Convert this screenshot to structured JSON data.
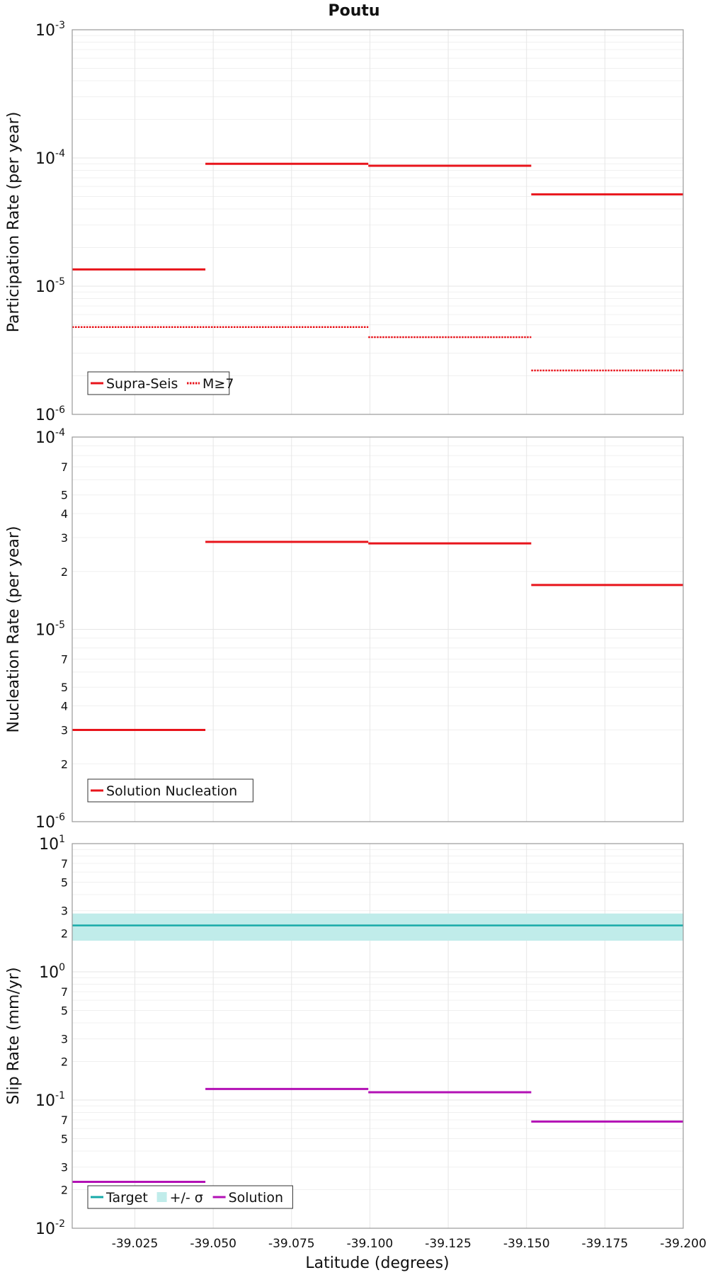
{
  "figure": {
    "title": "Poutu",
    "xlabel": "Latitude (degrees)"
  },
  "colors": {
    "red": "#e8141b",
    "teal": "#17aaa8",
    "band": "#c0ecea",
    "magenta": "#b311b5",
    "grid": "#e6e6e6",
    "frame": "#999999"
  },
  "chart_data": [
    {
      "type": "line",
      "ylabel": "Participation Rate (per year)",
      "xlim": [
        -39.005,
        -39.2
      ],
      "ylim": [
        1e-06,
        0.001
      ],
      "yscale": "log",
      "x_ticks": [
        -39.025,
        -39.05,
        -39.075,
        -39.1,
        -39.125,
        -39.15,
        -39.175,
        -39.2
      ],
      "y_major_ticks": [
        {
          "base": "10",
          "exp": "-6",
          "value": 1e-06
        },
        {
          "base": "10",
          "exp": "-5",
          "value": 1e-05
        },
        {
          "base": "10",
          "exp": "-4",
          "value": 0.0001
        },
        {
          "base": "10",
          "exp": "-3",
          "value": 0.001
        }
      ],
      "y_minor_labels": [],
      "legend": {
        "placement": "bottom-left",
        "entries": [
          {
            "label": "Supra-Seis",
            "style": "solid"
          },
          {
            "label": "M≥7",
            "style": "dotted"
          }
        ]
      },
      "series": [
        {
          "name": "Supra-Seis",
          "style": "solid",
          "color": "#e8141b",
          "segments": [
            {
              "x0": -39.005,
              "x1": -39.0475,
              "y": 1.35e-05
            },
            {
              "x0": -39.0475,
              "x1": -39.0995,
              "y": 9e-05
            },
            {
              "x0": -39.0995,
              "x1": -39.1515,
              "y": 8.7e-05
            },
            {
              "x0": -39.1515,
              "x1": -39.2,
              "y": 5.2e-05
            }
          ]
        },
        {
          "name": "M≥7",
          "style": "dotted",
          "color": "#e8141b",
          "segments": [
            {
              "x0": -39.005,
              "x1": -39.0995,
              "y": 4.8e-06
            },
            {
              "x0": -39.0995,
              "x1": -39.1515,
              "y": 4e-06
            },
            {
              "x0": -39.1515,
              "x1": -39.2,
              "y": 2.2e-06
            }
          ]
        }
      ]
    },
    {
      "type": "line",
      "ylabel": "Nucleation Rate (per year)",
      "xlim": [
        -39.005,
        -39.2
      ],
      "ylim": [
        1e-06,
        0.0001
      ],
      "yscale": "log",
      "x_ticks": [
        -39.025,
        -39.05,
        -39.075,
        -39.1,
        -39.125,
        -39.15,
        -39.175,
        -39.2
      ],
      "y_major_ticks": [
        {
          "base": "10",
          "exp": "-6",
          "value": 1e-06
        },
        {
          "base": "10",
          "exp": "-5",
          "value": 1e-05
        },
        {
          "base": "10",
          "exp": "-4",
          "value": 0.0001
        }
      ],
      "y_minor_labels": [
        {
          "label": "2",
          "value": 2e-06
        },
        {
          "label": "3",
          "value": 3e-06
        },
        {
          "label": "4",
          "value": 4e-06
        },
        {
          "label": "5",
          "value": 5e-06
        },
        {
          "label": "7",
          "value": 7e-06
        },
        {
          "label": "2",
          "value": 2e-05
        },
        {
          "label": "3",
          "value": 3e-05
        },
        {
          "label": "4",
          "value": 4e-05
        },
        {
          "label": "5",
          "value": 5e-05
        },
        {
          "label": "7",
          "value": 7e-05
        }
      ],
      "legend": {
        "placement": "bottom-left",
        "entries": [
          {
            "label": "Solution Nucleation",
            "style": "solid"
          }
        ]
      },
      "series": [
        {
          "name": "Solution Nucleation",
          "style": "solid",
          "color": "#e8141b",
          "segments": [
            {
              "x0": -39.005,
              "x1": -39.0475,
              "y": 3e-06
            },
            {
              "x0": -39.0475,
              "x1": -39.0995,
              "y": 2.85e-05
            },
            {
              "x0": -39.0995,
              "x1": -39.1515,
              "y": 2.8e-05
            },
            {
              "x0": -39.1515,
              "x1": -39.2,
              "y": 1.7e-05
            }
          ]
        }
      ]
    },
    {
      "type": "line",
      "ylabel": "Slip Rate (mm/yr)",
      "xlim": [
        -39.005,
        -39.2
      ],
      "ylim": [
        0.01,
        10
      ],
      "yscale": "log",
      "x_ticks": [
        -39.025,
        -39.05,
        -39.075,
        -39.1,
        -39.125,
        -39.15,
        -39.175,
        -39.2
      ],
      "y_major_ticks": [
        {
          "base": "10",
          "exp": "-2",
          "value": 0.01
        },
        {
          "base": "10",
          "exp": "-1",
          "value": 0.1
        },
        {
          "base": "10",
          "exp": "0",
          "value": 1
        },
        {
          "base": "10",
          "exp": "1",
          "value": 10
        }
      ],
      "y_minor_labels": [
        {
          "label": "2",
          "value": 0.02
        },
        {
          "label": "3",
          "value": 0.03
        },
        {
          "label": "5",
          "value": 0.05
        },
        {
          "label": "7",
          "value": 0.07
        },
        {
          "label": "2",
          "value": 0.2
        },
        {
          "label": "3",
          "value": 0.3
        },
        {
          "label": "5",
          "value": 0.5
        },
        {
          "label": "7",
          "value": 0.7
        },
        {
          "label": "2",
          "value": 2
        },
        {
          "label": "3",
          "value": 3
        },
        {
          "label": "5",
          "value": 5
        },
        {
          "label": "7",
          "value": 7
        }
      ],
      "legend": {
        "placement": "bottom-left",
        "entries": [
          {
            "label": "Target",
            "style": "solid-teal"
          },
          {
            "label": "+/- σ",
            "style": "band"
          },
          {
            "label": "Solution",
            "style": "solid-magenta"
          }
        ]
      },
      "target": {
        "value": 2.3,
        "band": [
          1.75,
          2.85
        ]
      },
      "series": [
        {
          "name": "Solution",
          "style": "solid",
          "color": "#b311b5",
          "segments": [
            {
              "x0": -39.005,
              "x1": -39.0475,
              "y": 0.023
            },
            {
              "x0": -39.0475,
              "x1": -39.0995,
              "y": 0.122
            },
            {
              "x0": -39.0995,
              "x1": -39.1515,
              "y": 0.115
            },
            {
              "x0": -39.1515,
              "x1": -39.2,
              "y": 0.068
            }
          ]
        }
      ]
    }
  ]
}
